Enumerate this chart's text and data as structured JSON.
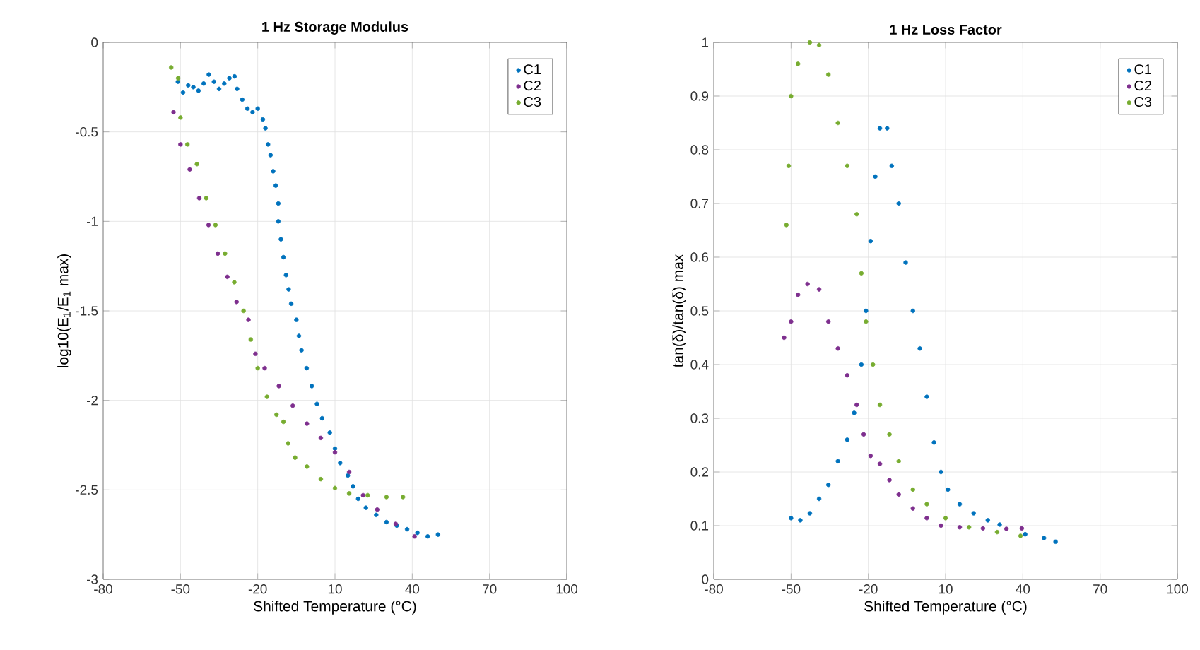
{
  "chart_data": [
    {
      "type": "scatter",
      "title": "1 Hz Storage Modulus",
      "xlabel": "Shifted Temperature (°C)",
      "ylabel": "log10(E$_{1}$/E$_{1}$ max)",
      "xlim": [
        -80,
        100
      ],
      "xticks": [
        -80,
        -50,
        -20,
        10,
        40,
        70,
        100
      ],
      "ylim": [
        -3,
        0
      ],
      "yticks": [
        -3,
        -2.5,
        -2,
        -1.5,
        -1,
        -0.5,
        0
      ],
      "grid": true,
      "legend": "top right",
      "marker": "circle",
      "series": [
        {
          "name": "C1",
          "color": "#0072bd",
          "x": [
            -51,
            -49,
            -47,
            -45,
            -43,
            -41,
            -39,
            -37,
            -35,
            -33,
            -31,
            -29,
            -28,
            -26,
            -24,
            -22,
            -20,
            -18,
            -17,
            -16,
            -15,
            -14,
            -13,
            -12,
            -12,
            -11,
            -10,
            -9,
            -8,
            -7,
            -5,
            -4,
            -3,
            -1,
            1,
            3,
            5,
            8,
            10,
            12,
            15,
            17,
            19,
            22,
            26,
            30,
            34,
            38,
            42,
            46,
            50
          ],
          "values": [
            -0.22,
            -0.28,
            -0.24,
            -0.25,
            -0.27,
            -0.23,
            -0.18,
            -0.22,
            -0.26,
            -0.23,
            -0.2,
            -0.19,
            -0.26,
            -0.32,
            -0.37,
            -0.39,
            -0.37,
            -0.43,
            -0.48,
            -0.57,
            -0.63,
            -0.72,
            -0.8,
            -0.9,
            -1.0,
            -1.1,
            -1.2,
            -1.3,
            -1.38,
            -1.46,
            -1.55,
            -1.64,
            -1.72,
            -1.82,
            -1.92,
            -2.02,
            -2.1,
            -2.18,
            -2.27,
            -2.35,
            -2.42,
            -2.48,
            -2.55,
            -2.6,
            -2.64,
            -2.68,
            -2.7,
            -2.72,
            -2.74,
            -2.76,
            -2.75
          ]
        },
        {
          "name": "C2",
          "color": "#7e2f8e",
          "x": [
            -52.7,
            -50,
            -46.4,
            -42.7,
            -39.1,
            -35.5,
            -31.8,
            -28.2,
            -23.6,
            -20.9,
            -17.3,
            -11.8,
            -6.4,
            -0.9,
            4.5,
            10,
            15.5,
            20.9,
            26.4,
            33.6,
            40.9
          ],
          "values": [
            -0.39,
            -0.57,
            -0.71,
            -0.87,
            -1.02,
            -1.18,
            -1.31,
            -1.45,
            -1.55,
            -1.74,
            -1.82,
            -1.92,
            -2.03,
            -2.13,
            -2.21,
            -2.29,
            -2.4,
            -2.53,
            -2.61,
            -2.69,
            -2.76
          ]
        },
        {
          "name": "C3",
          "color": "#77ac30",
          "x": [
            -53.6,
            -50.9,
            -50,
            -47.3,
            -43.6,
            -40,
            -36.4,
            -32.7,
            -29.1,
            -25.5,
            -22.7,
            -20,
            -16.4,
            -12.7,
            -10,
            -8.2,
            -5.5,
            -0.9,
            4.5,
            10,
            15.5,
            22.7,
            30,
            36.4
          ],
          "values": [
            -0.14,
            -0.2,
            -0.42,
            -0.57,
            -0.68,
            -0.87,
            -1.02,
            -1.18,
            -1.34,
            -1.5,
            -1.66,
            -1.82,
            -1.98,
            -2.08,
            -2.12,
            -2.24,
            -2.32,
            -2.37,
            -2.44,
            -2.49,
            -2.52,
            -2.53,
            -2.54,
            -2.54
          ]
        }
      ]
    },
    {
      "type": "scatter",
      "title": "1 Hz Loss Factor",
      "xlabel": "Shifted Temperature (°C)",
      "ylabel": "tan(δ)/tan(δ) max",
      "xlim": [
        -80,
        100
      ],
      "xticks": [
        -80,
        -50,
        -20,
        10,
        40,
        70,
        100
      ],
      "ylim": [
        0,
        1
      ],
      "yticks": [
        0,
        0.1,
        0.2,
        0.3,
        0.4,
        0.5,
        0.6,
        0.7,
        0.8,
        0.9,
        1
      ],
      "grid": true,
      "legend": "top right",
      "marker": "circle",
      "series": [
        {
          "name": "C1",
          "color": "#0072bd",
          "x": [
            -50,
            -46.4,
            -42.7,
            -39.1,
            -35.5,
            -31.8,
            -28.2,
            -25.5,
            -22.7,
            -20.9,
            -19.1,
            -17.3,
            -15.5,
            -12.7,
            -10.9,
            -8.2,
            -5.5,
            -2.7,
            0,
            2.7,
            5.5,
            8.2,
            10.9,
            15.5,
            20.9,
            26.4,
            31,
            40.9,
            48.2,
            52.7
          ],
          "values": [
            0.114,
            0.11,
            0.123,
            0.15,
            0.176,
            0.22,
            0.26,
            0.31,
            0.4,
            0.5,
            0.63,
            0.75,
            0.84,
            0.84,
            0.77,
            0.7,
            0.59,
            0.5,
            0.43,
            0.34,
            0.255,
            0.2,
            0.167,
            0.14,
            0.123,
            0.11,
            0.102,
            0.084,
            0.077,
            0.07
          ]
        },
        {
          "name": "C2",
          "color": "#7e2f8e",
          "x": [
            -52.7,
            -50,
            -47.3,
            -43.6,
            -39.1,
            -35.5,
            -31.8,
            -28.2,
            -24.5,
            -21.8,
            -19.1,
            -15.5,
            -11.8,
            -8.2,
            -2.7,
            2.7,
            8.2,
            15.5,
            24.5,
            33.6,
            39.6
          ],
          "values": [
            0.45,
            0.48,
            0.53,
            0.55,
            0.54,
            0.48,
            0.43,
            0.38,
            0.325,
            0.27,
            0.23,
            0.215,
            0.185,
            0.158,
            0.132,
            0.114,
            0.1,
            0.097,
            0.095,
            0.094,
            0.095
          ]
        },
        {
          "name": "C3",
          "color": "#77ac30",
          "x": [
            -51.8,
            -50.9,
            -50,
            -47.3,
            -42.7,
            -39.1,
            -35.5,
            -31.8,
            -28.2,
            -24.5,
            -22.7,
            -20.9,
            -18.2,
            -15.5,
            -11.8,
            -8.2,
            -2.7,
            2.7,
            10,
            19.1,
            30,
            39.1
          ],
          "values": [
            0.66,
            0.77,
            0.9,
            0.96,
            1.0,
            0.995,
            0.94,
            0.85,
            0.77,
            0.68,
            0.57,
            0.48,
            0.4,
            0.325,
            0.27,
            0.22,
            0.167,
            0.14,
            0.114,
            0.097,
            0.088,
            0.081
          ]
        }
      ]
    }
  ]
}
